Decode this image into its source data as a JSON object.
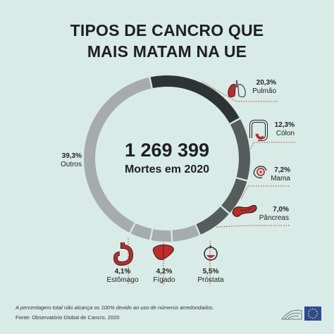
{
  "title_line1": "TIPOS DE CANCRO QUE",
  "title_line2": "MAIS MATAM NA UE",
  "center_value": "1 269 399",
  "center_label": "Mortes em 2020",
  "footnote": "A percentagem total não alcança os 100% devido ao uso de números arredondados.",
  "source": "Fonte: Observatório Global de Cancro, 2020",
  "colors": {
    "background": "#d8ebe6",
    "dark": "#2e3333",
    "mid": "#565c5c",
    "light": "#a6abab",
    "organ": "#c62828",
    "dots": "#c62828"
  },
  "chart_data": {
    "type": "pie",
    "title": "TIPOS DE CANCRO QUE MAIS MATAM NA UE",
    "unit": "%",
    "categories": [
      "Pulmão",
      "Cólon",
      "Mama",
      "Pâncreas",
      "Próstata",
      "Fígado",
      "Estômago",
      "Outros"
    ],
    "values": [
      20.3,
      12.3,
      7.2,
      7.0,
      5.5,
      4.2,
      4.1,
      39.3
    ],
    "labels": [
      "20,3%",
      "12,3%",
      "7,2%",
      "7,0%",
      "5,5%",
      "4,2%",
      "4,1%",
      "39,3%"
    ],
    "icons": [
      "lungs-icon",
      "colon-icon",
      "breast-icon",
      "pancreas-icon",
      "prostate-icon",
      "liver-icon",
      "stomach-icon",
      ""
    ]
  }
}
